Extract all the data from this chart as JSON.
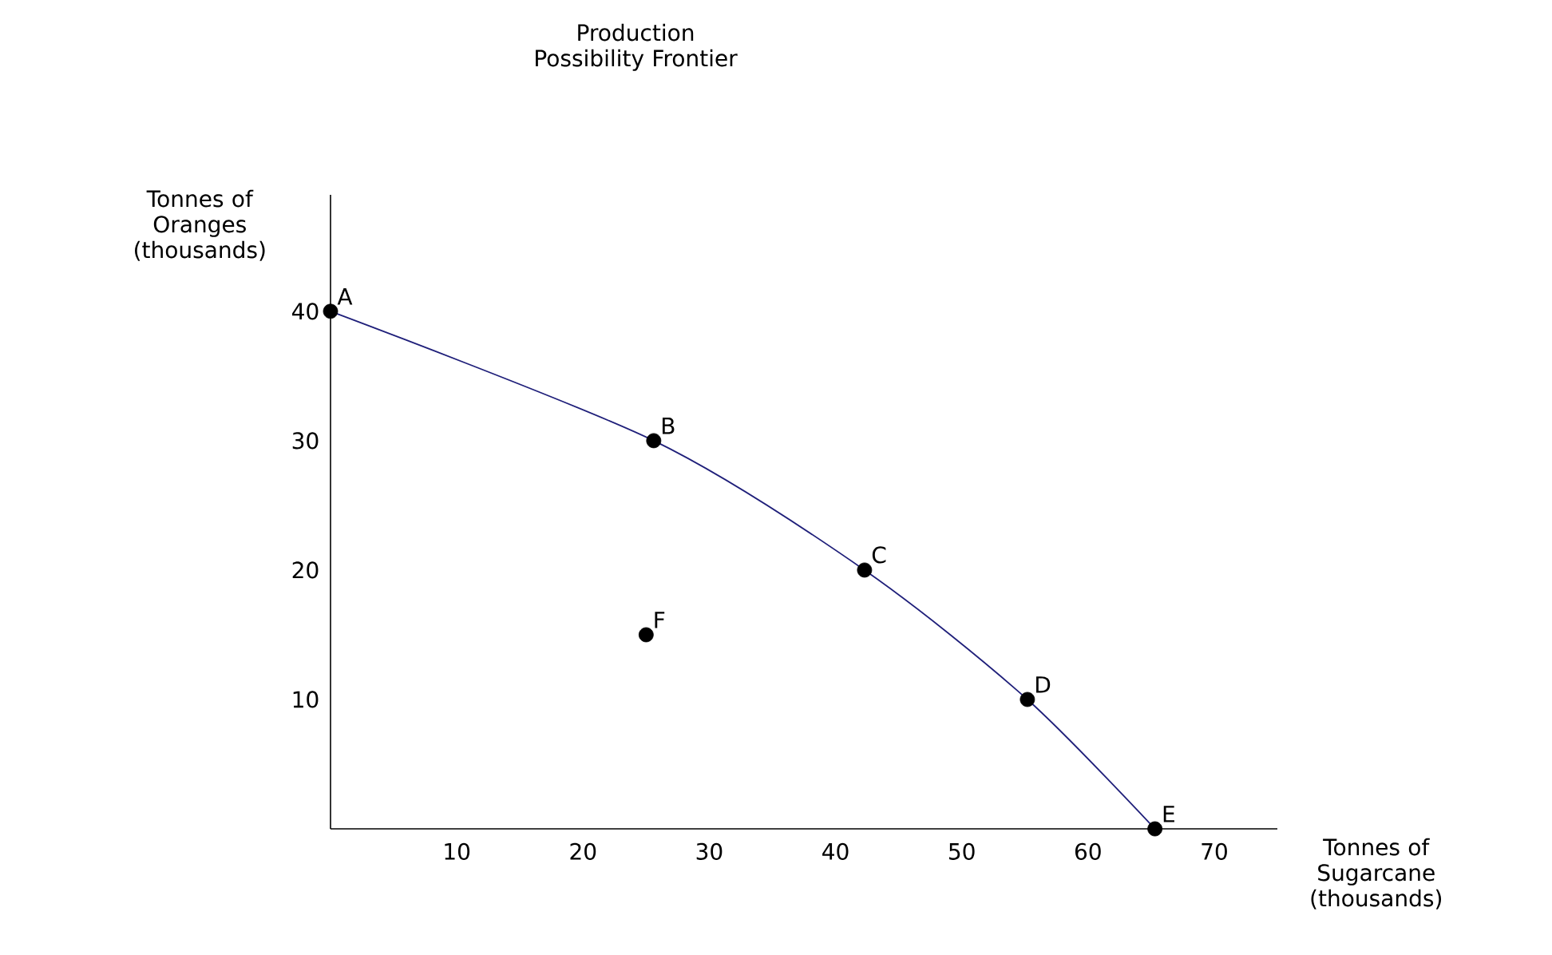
{
  "chart_data": {
    "type": "scatter",
    "title": "Production Possibility Frontier",
    "xlabel": "Tonnes of Sugarcane (thousands)",
    "ylabel": "Tonnes of Oranges (thousands)",
    "xlim": [
      0,
      75
    ],
    "ylim": [
      0,
      49
    ],
    "xticks": [
      10,
      20,
      30,
      40,
      50,
      60,
      70
    ],
    "yticks": [
      10,
      20,
      30,
      40
    ],
    "series": [
      {
        "type": "line",
        "color": "#1f1f7a",
        "x": [
          0,
          25.6,
          42.3,
          55.2,
          65.3
        ],
        "values": [
          40,
          30,
          20,
          10,
          0
        ]
      },
      {
        "color": "#000000",
        "marker": "circle",
        "x": [
          0,
          25.6,
          42.3,
          55.2,
          65.3,
          25
        ],
        "values": [
          40,
          30,
          20,
          10,
          0,
          15
        ]
      }
    ],
    "annotations": [
      {
        "text": "A",
        "x": 0,
        "y": 40
      },
      {
        "text": "B",
        "x": 25.6,
        "y": 30
      },
      {
        "text": "C",
        "x": 42.3,
        "y": 20
      },
      {
        "text": "D",
        "x": 55.2,
        "y": 10
      },
      {
        "text": "E",
        "x": 65.3,
        "y": 0
      },
      {
        "text": "F",
        "x": 25,
        "y": 15
      }
    ]
  }
}
